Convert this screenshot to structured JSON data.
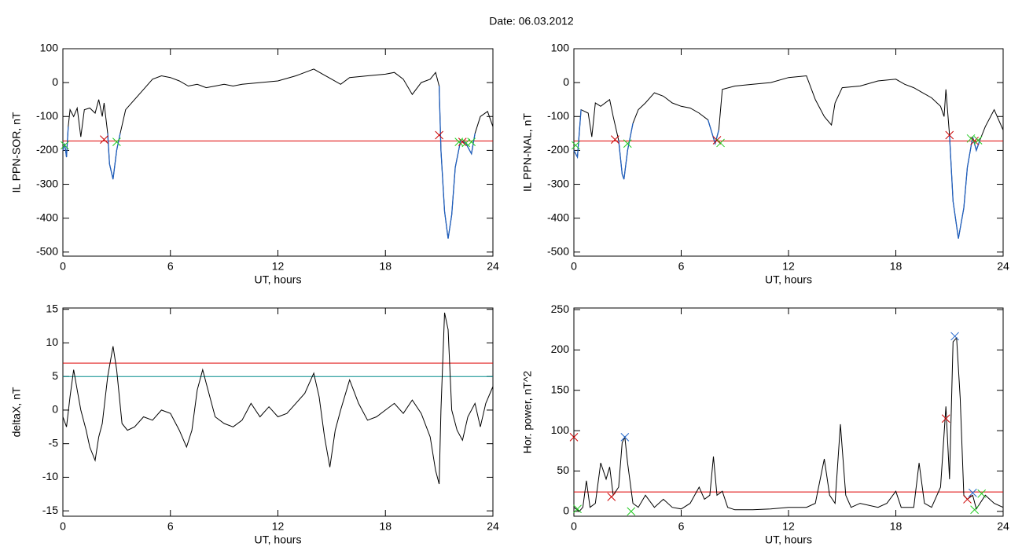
{
  "title": "Date:  06.03.2012",
  "chart_data": [
    {
      "type": "line",
      "ylabel": "IL PPN-SOR, nT",
      "xlabel": "UT, hours",
      "xlim": [
        0,
        24
      ],
      "xticks": [
        0,
        6,
        12,
        18,
        24
      ],
      "ylim": [
        -512,
        100
      ],
      "yticks": [
        100,
        0,
        -100,
        -200,
        -300,
        -400,
        -500
      ],
      "x": [
        0,
        0.1,
        0.2,
        0.3,
        0.4,
        0.6,
        0.8,
        1.0,
        1.2,
        1.5,
        1.8,
        2.0,
        2.2,
        2.3,
        2.5,
        2.6,
        2.8,
        3.0,
        3.2,
        3.5,
        4.0,
        4.5,
        5.0,
        5.5,
        6.0,
        6.5,
        7.0,
        7.5,
        8.0,
        8.5,
        9.0,
        9.5,
        10,
        11,
        12,
        13,
        14,
        14.5,
        15,
        15.5,
        16,
        17,
        18,
        18.5,
        19,
        19.5,
        20,
        20.5,
        20.8,
        21.0,
        21.1,
        21.3,
        21.5,
        21.7,
        21.9,
        22.2,
        22.5,
        22.8,
        23.0,
        23.3,
        23.7,
        24
      ],
      "series": [
        {
          "color": "#000000",
          "below_color": "#1f5fbf",
          "values": [
            -200,
            -180,
            -220,
            -130,
            -80,
            -100,
            -75,
            -160,
            -80,
            -75,
            -90,
            -50,
            -100,
            -60,
            -150,
            -240,
            -285,
            -200,
            -150,
            -80,
            -50,
            -20,
            10,
            20,
            15,
            5,
            -10,
            -5,
            -15,
            -10,
            -5,
            -10,
            -5,
            0,
            5,
            20,
            40,
            25,
            10,
            -5,
            15,
            20,
            25,
            30,
            10,
            -35,
            0,
            10,
            30,
            -10,
            -200,
            -380,
            -460,
            -390,
            -250,
            -170,
            -180,
            -210,
            -150,
            -100,
            -85,
            -130
          ]
        }
      ],
      "thresholds": [
        {
          "value": -172,
          "color": "#dd0000"
        }
      ],
      "markers": [
        {
          "color": "#cc0000",
          "x": [
            2.3,
            21.0,
            22.3
          ],
          "values": [
            -168,
            -155,
            -175
          ]
        },
        {
          "color": "#22cc22",
          "x": [
            0.1,
            3.0,
            22.1,
            22.5,
            22.8
          ],
          "values": [
            -185,
            -175,
            -175,
            -178,
            -175
          ]
        }
      ]
    },
    {
      "type": "line",
      "ylabel": "IL PPN-NAL, nT",
      "xlabel": "UT, hours",
      "xlim": [
        0,
        24
      ],
      "xticks": [
        0,
        6,
        12,
        18,
        24
      ],
      "ylim": [
        -512,
        100
      ],
      "yticks": [
        100,
        0,
        -100,
        -200,
        -300,
        -400,
        -500
      ],
      "x": [
        0,
        0.2,
        0.4,
        0.8,
        1.0,
        1.2,
        1.5,
        2.0,
        2.2,
        2.5,
        2.7,
        2.8,
        3.0,
        3.3,
        3.6,
        4.0,
        4.5,
        5.0,
        5.5,
        6,
        6.5,
        7,
        7.5,
        7.9,
        8.1,
        8.3,
        9,
        10,
        11,
        12,
        13,
        13.5,
        14,
        14.4,
        14.6,
        15,
        16,
        17,
        18,
        18.5,
        19,
        19.5,
        20,
        20.5,
        20.7,
        20.8,
        21,
        21.2,
        21.5,
        21.8,
        22.0,
        22.3,
        22.5,
        22.7,
        23.0,
        23.5,
        24
      ],
      "series": [
        {
          "color": "#000000",
          "below_color": "#1f5fbf",
          "values": [
            -200,
            -220,
            -80,
            -90,
            -160,
            -60,
            -70,
            -50,
            -100,
            -170,
            -270,
            -285,
            -200,
            -120,
            -80,
            -60,
            -30,
            -40,
            -60,
            -70,
            -75,
            -90,
            -110,
            -180,
            -140,
            -20,
            -10,
            -5,
            0,
            15,
            20,
            -50,
            -100,
            -125,
            -60,
            -15,
            -10,
            5,
            10,
            -5,
            -15,
            -30,
            -45,
            -70,
            -100,
            -20,
            -155,
            -350,
            -460,
            -370,
            -250,
            -160,
            -200,
            -170,
            -130,
            -80,
            -140
          ]
        }
      ],
      "thresholds": [
        {
          "value": -172,
          "color": "#dd0000"
        }
      ],
      "markers": [
        {
          "color": "#cc0000",
          "x": [
            2.3,
            8.0,
            21.0,
            22.4
          ],
          "values": [
            -168,
            -170,
            -155,
            -172
          ]
        },
        {
          "color": "#22cc22",
          "x": [
            0.1,
            3.0,
            8.2,
            22.2,
            22.6
          ],
          "values": [
            -185,
            -180,
            -178,
            -165,
            -170
          ]
        }
      ]
    },
    {
      "type": "line",
      "ylabel": "deltaX, nT",
      "xlabel": "UT, hours",
      "xlim": [
        0,
        24
      ],
      "xticks": [
        0,
        6,
        12,
        18,
        24
      ],
      "ylim": [
        -15.8,
        15.2
      ],
      "yticks": [
        15,
        10,
        5,
        0,
        -5,
        -10,
        -15
      ],
      "x": [
        0,
        0.2,
        0.4,
        0.6,
        0.8,
        1,
        1.3,
        1.5,
        1.8,
        2.0,
        2.2,
        2.5,
        2.8,
        3.0,
        3.3,
        3.6,
        4,
        4.5,
        5,
        5.5,
        6,
        6.5,
        6.9,
        7.2,
        7.5,
        7.8,
        8.0,
        8.5,
        9,
        9.5,
        10,
        10.5,
        11,
        11.5,
        12,
        12.5,
        13,
        13.5,
        14,
        14.3,
        14.6,
        14.9,
        15.2,
        15.5,
        16,
        16.5,
        17,
        17.5,
        18,
        18.5,
        19,
        19.5,
        20,
        20.5,
        20.8,
        21.0,
        21.1,
        21.3,
        21.5,
        21.7,
        22,
        22.3,
        22.6,
        23,
        23.3,
        23.6,
        24
      ],
      "series": [
        {
          "color": "#000000",
          "values": [
            -1,
            -2.5,
            2,
            6,
            3,
            0,
            -3,
            -5.5,
            -7.5,
            -4,
            -2,
            5,
            9.5,
            6,
            -2,
            -3,
            -2.5,
            -1,
            -1.5,
            0,
            -0.5,
            -3,
            -5.5,
            -3,
            3,
            6,
            4,
            -1,
            -2,
            -2.5,
            -1.5,
            1,
            -1,
            0.5,
            -1,
            -0.5,
            1,
            2.5,
            5.5,
            2,
            -4,
            -8.5,
            -3,
            0,
            4.5,
            1,
            -1.5,
            -1,
            0,
            1,
            -0.5,
            1.5,
            -0.5,
            -4,
            -9,
            -11,
            0,
            14.5,
            12,
            0,
            -3,
            -4.5,
            -1,
            1,
            -2.5,
            1,
            3.5
          ]
        }
      ],
      "thresholds": [
        {
          "value": 7,
          "color": "#dd0000"
        },
        {
          "value": 5,
          "color": "#008b8b"
        }
      ],
      "markers": []
    },
    {
      "type": "line",
      "ylabel": "Hor. power, nT^2",
      "xlabel": "UT, hours",
      "xlim": [
        0,
        24
      ],
      "xticks": [
        0,
        6,
        12,
        18,
        24
      ],
      "ylim": [
        -6,
        252
      ],
      "yticks": [
        250,
        200,
        150,
        100,
        50,
        0
      ],
      "x": [
        0,
        0.3,
        0.5,
        0.7,
        0.9,
        1.2,
        1.5,
        1.8,
        2.0,
        2.2,
        2.5,
        2.7,
        2.85,
        3.0,
        3.3,
        3.6,
        4,
        4.5,
        5,
        5.5,
        6,
        6.5,
        7,
        7.3,
        7.6,
        7.8,
        8.0,
        8.3,
        8.6,
        9,
        10,
        11,
        12,
        13,
        13.5,
        14,
        14.3,
        14.6,
        14.9,
        15.2,
        15.5,
        16,
        17,
        17.5,
        18,
        18.3,
        19,
        19.3,
        19.6,
        20,
        20.5,
        20.8,
        21,
        21.2,
        21.4,
        21.6,
        21.8,
        22,
        22.3,
        22.5,
        23,
        23.5,
        24
      ],
      "series": [
        {
          "color": "#000000",
          "values": [
            5,
            0,
            5,
            38,
            5,
            10,
            60,
            40,
            55,
            20,
            30,
            85,
            92,
            60,
            10,
            5,
            20,
            5,
            15,
            5,
            3,
            10,
            30,
            15,
            20,
            68,
            20,
            25,
            5,
            2,
            2,
            3,
            5,
            5,
            10,
            65,
            20,
            10,
            108,
            20,
            5,
            10,
            5,
            10,
            25,
            5,
            5,
            60,
            10,
            5,
            30,
            130,
            40,
            210,
            215,
            140,
            20,
            15,
            20,
            3,
            20,
            10,
            5
          ]
        }
      ],
      "thresholds": [
        {
          "value": 24,
          "color": "#dd0000"
        }
      ],
      "markers": [
        {
          "color": "#cc0000",
          "x": [
            0,
            2.1,
            20.8,
            22.0
          ],
          "values": [
            92,
            18,
            115,
            15
          ]
        },
        {
          "color": "#2266cc",
          "x": [
            2.85,
            21.3,
            22.3
          ],
          "values": [
            92,
            217,
            23
          ]
        },
        {
          "color": "#22cc22",
          "x": [
            0.2,
            3.2,
            22.4,
            22.8
          ],
          "values": [
            3,
            0,
            2,
            22
          ]
        }
      ]
    }
  ]
}
